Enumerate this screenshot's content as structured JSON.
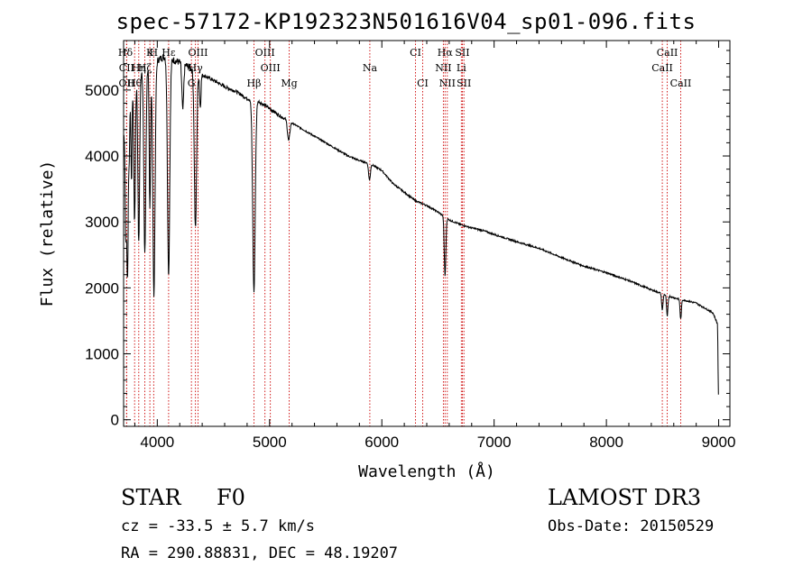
{
  "header": {
    "title": "spec-57172-KP192323N501616V04_sp01-096.fits"
  },
  "info": {
    "object_class": "STAR",
    "subclass": "F0",
    "survey": "LAMOST DR3",
    "cz": "cz = -33.5 ± 5.7 km/s",
    "obs_date": "Obs-Date: 20150529",
    "radec": "RA = 290.88831, DEC =  48.19207"
  },
  "chart_data": {
    "type": "line",
    "title": "spec-57172-KP192323N501616V04_sp01-096.fits",
    "xlabel": "Wavelength (Å)",
    "ylabel": "Flux (relative)",
    "xlim": [
      3700,
      9100
    ],
    "ylim": [
      -100,
      5750
    ],
    "xticks": [
      4000,
      5000,
      6000,
      7000,
      8000,
      9000
    ],
    "yticks": [
      0,
      1000,
      2000,
      3000,
      4000,
      5000
    ],
    "continuum": [
      [
        3700,
        4300
      ],
      [
        3750,
        5000
      ],
      [
        3800,
        5200
      ],
      [
        3850,
        5300
      ],
      [
        3900,
        5350
      ],
      [
        3950,
        5400
      ],
      [
        4000,
        5450
      ],
      [
        4050,
        5500
      ],
      [
        4100,
        5500
      ],
      [
        4150,
        5450
      ],
      [
        4200,
        5420
      ],
      [
        4250,
        5380
      ],
      [
        4300,
        5330
      ],
      [
        4400,
        5230
      ],
      [
        4500,
        5150
      ],
      [
        4600,
        5050
      ],
      [
        4700,
        4980
      ],
      [
        4800,
        4870
      ],
      [
        4900,
        4830
      ],
      [
        5000,
        4720
      ],
      [
        5100,
        4600
      ],
      [
        5200,
        4500
      ],
      [
        5300,
        4400
      ],
      [
        5400,
        4300
      ],
      [
        5500,
        4200
      ],
      [
        5600,
        4100
      ],
      [
        5700,
        4000
      ],
      [
        5800,
        3930
      ],
      [
        5900,
        3880
      ],
      [
        6000,
        3780
      ],
      [
        6100,
        3580
      ],
      [
        6200,
        3450
      ],
      [
        6300,
        3320
      ],
      [
        6400,
        3250
      ],
      [
        6500,
        3150
      ],
      [
        6600,
        3030
      ],
      [
        6700,
        2960
      ],
      [
        6800,
        2910
      ],
      [
        6900,
        2870
      ],
      [
        7000,
        2810
      ],
      [
        7200,
        2700
      ],
      [
        7400,
        2600
      ],
      [
        7600,
        2460
      ],
      [
        7800,
        2330
      ],
      [
        8000,
        2230
      ],
      [
        8200,
        2110
      ],
      [
        8400,
        1970
      ],
      [
        8600,
        1850
      ],
      [
        8800,
        1770
      ],
      [
        8950,
        1620
      ],
      [
        8990,
        1450
      ],
      [
        9000,
        100
      ]
    ],
    "absorption": [
      [
        3720,
        1800,
        6
      ],
      [
        3735,
        2600,
        6
      ],
      [
        3750,
        1000,
        5
      ],
      [
        3770,
        1500,
        5
      ],
      [
        3798,
        2200,
        7
      ],
      [
        3835,
        2600,
        8
      ],
      [
        3889,
        2800,
        9
      ],
      [
        3934,
        2200,
        6
      ],
      [
        3970,
        3500,
        10
      ],
      [
        4101,
        3300,
        10
      ],
      [
        4227,
        700,
        8
      ],
      [
        4340,
        2400,
        10
      ],
      [
        4383,
        500,
        6
      ],
      [
        4861,
        2900,
        11
      ],
      [
        5170,
        300,
        10
      ],
      [
        5890,
        250,
        8
      ],
      [
        6563,
        900,
        7
      ],
      [
        8498,
        250,
        6
      ],
      [
        8542,
        320,
        6
      ],
      [
        8662,
        300,
        6
      ]
    ],
    "lines": [
      {
        "label": "Hδ",
        "wl": 3700,
        "row": 0
      },
      {
        "label": "K",
        "wl": 3934,
        "row": 0
      },
      {
        "label": "H",
        "wl": 3968,
        "row": 0
      },
      {
        "label": "Hε",
        "wl": 4101,
        "row": 0
      },
      {
        "label": "OIII",
        "wl": 4363,
        "row": 0
      },
      {
        "label": "OIII",
        "wl": 4959,
        "row": 0
      },
      {
        "label": "CI",
        "wl": 6300,
        "row": 0
      },
      {
        "label": "Hα",
        "wl": 6563,
        "row": 0
      },
      {
        "label": "SII",
        "wl": 6717,
        "row": 0
      },
      {
        "label": "CaII",
        "wl": 8542,
        "row": 0
      },
      {
        "label": "CII",
        "wl": 3727,
        "row": 1
      },
      {
        "label": "Hη",
        "wl": 3835,
        "row": 1
      },
      {
        "label": "Hζ",
        "wl": 3889,
        "row": 1
      },
      {
        "label": "Hγ",
        "wl": 4340,
        "row": 1
      },
      {
        "label": "OIII",
        "wl": 5007,
        "row": 1
      },
      {
        "label": "Na",
        "wl": 5893,
        "row": 1
      },
      {
        "label": "NII",
        "wl": 6548,
        "row": 1
      },
      {
        "label": "Li",
        "wl": 6708,
        "row": 1
      },
      {
        "label": "CaII",
        "wl": 8498,
        "row": 1
      },
      {
        "label": "OII",
        "wl": 3727,
        "row": 2
      },
      {
        "label": "Hθ",
        "wl": 3798,
        "row": 2
      },
      {
        "label": "G",
        "wl": 4304,
        "row": 2
      },
      {
        "label": "Hβ",
        "wl": 4861,
        "row": 2
      },
      {
        "label": "Mg",
        "wl": 5175,
        "row": 2
      },
      {
        "label": "CI",
        "wl": 6364,
        "row": 2
      },
      {
        "label": "NII",
        "wl": 6583,
        "row": 2
      },
      {
        "label": "SII",
        "wl": 6731,
        "row": 2
      },
      {
        "label": "CaII",
        "wl": 8662,
        "row": 2
      }
    ],
    "line_colors": {
      "frame": "#000000",
      "marker": "#cc0000",
      "flux": "#000000"
    }
  }
}
